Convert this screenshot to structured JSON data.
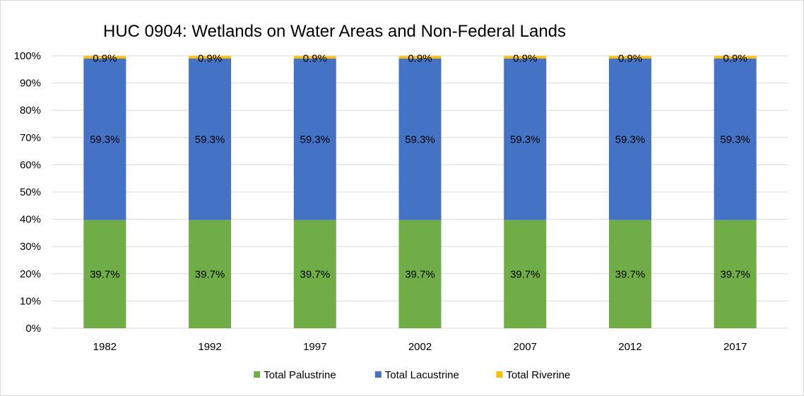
{
  "chart_data": {
    "type": "bar",
    "stacked": true,
    "title": "HUC 0904: Wetlands on Water Areas and Non-Federal Lands",
    "xlabel": "",
    "ylabel": "",
    "ylim": [
      0,
      100
    ],
    "y_ticks": [
      "0%",
      "10%",
      "20%",
      "30%",
      "40%",
      "50%",
      "60%",
      "70%",
      "80%",
      "90%",
      "100%"
    ],
    "grid": true,
    "legend_position": "bottom",
    "categories": [
      "1982",
      "1992",
      "1997",
      "2002",
      "2007",
      "2012",
      "2017"
    ],
    "series": [
      {
        "name": "Total Palustrine",
        "color": "#70ad47",
        "values": [
          39.7,
          39.7,
          39.7,
          39.7,
          39.7,
          39.7,
          39.7
        ],
        "labels": [
          "39.7%",
          "39.7%",
          "39.7%",
          "39.7%",
          "39.7%",
          "39.7%",
          "39.7%"
        ]
      },
      {
        "name": "Total Lacustrine",
        "color": "#4472c4",
        "values": [
          59.3,
          59.3,
          59.3,
          59.3,
          59.3,
          59.3,
          59.3
        ],
        "labels": [
          "59.3%",
          "59.3%",
          "59.3%",
          "59.3%",
          "59.3%",
          "59.3%",
          "59.3%"
        ]
      },
      {
        "name": "Total Riverine",
        "color": "#ffc000",
        "values": [
          0.9,
          0.9,
          0.9,
          0.9,
          0.9,
          0.9,
          0.9
        ],
        "labels": [
          "0.9%",
          "0.9%",
          "0.9%",
          "0.9%",
          "0.9%",
          "0.9%",
          "0.9%"
        ]
      }
    ]
  }
}
